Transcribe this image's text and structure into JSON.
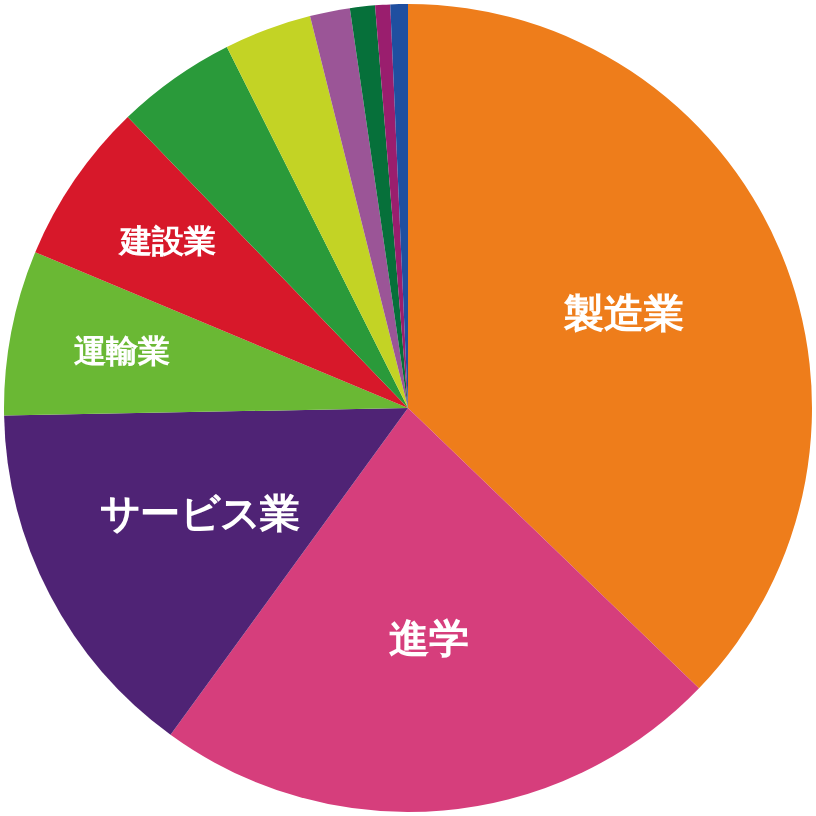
{
  "chart_data": {
    "type": "pie",
    "categories": [
      "製造業",
      "進学",
      "サービス業",
      "運輸業",
      "建設業",
      null,
      null,
      null,
      null,
      null,
      null
    ],
    "values": [
      37.2,
      22.8,
      14.7,
      6.6,
      6.5,
      4.8,
      3.5,
      1.6,
      1.0,
      0.6,
      0.7
    ],
    "colors": [
      "#ee7d1b",
      "#d63e7c",
      "#4f2375",
      "#6ab834",
      "#d7182a",
      "#2a9a3a",
      "#c3d325",
      "#9b5597",
      "#06703a",
      "#9a1e6e",
      "#1f4fa0"
    ],
    "legend": false
  }
}
